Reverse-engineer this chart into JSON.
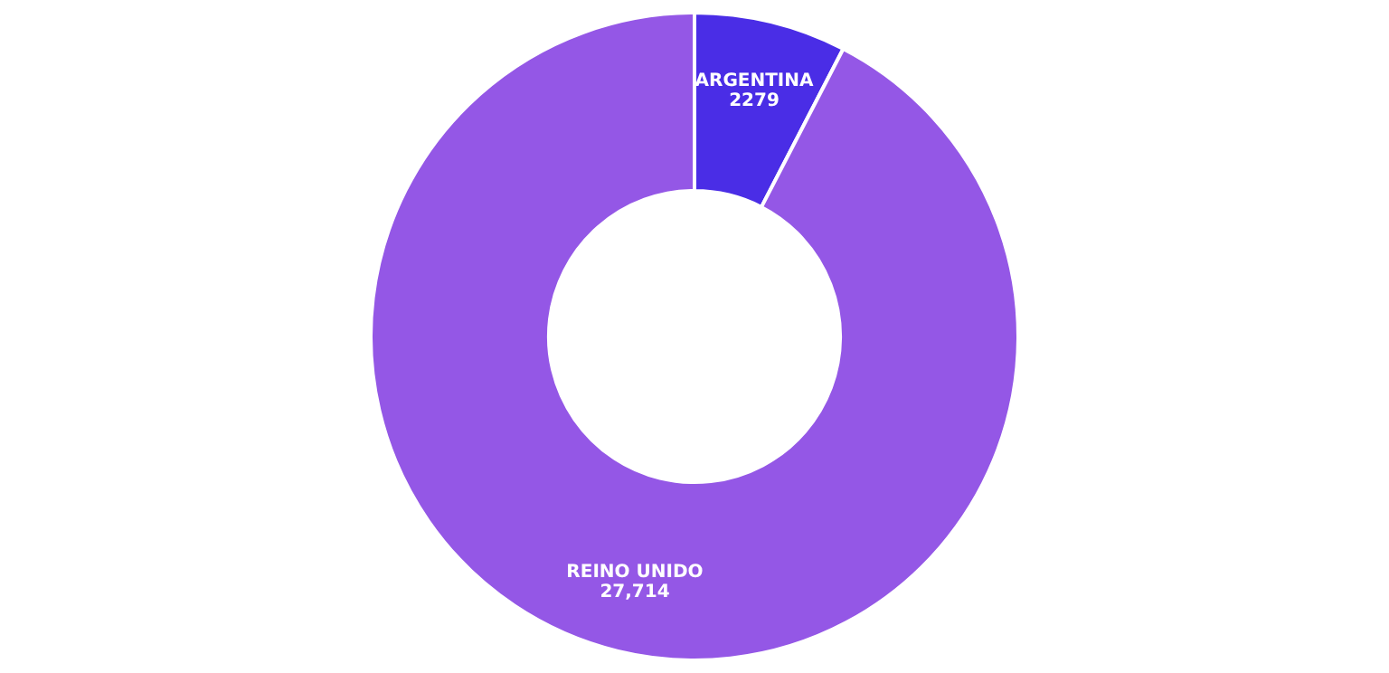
{
  "chart_data": {
    "type": "donut",
    "categories": [
      "ARGENTINA",
      "REINO UNIDO"
    ],
    "values": [
      2279,
      27714
    ],
    "colors": [
      "#4a2de6",
      "#9457e6"
    ],
    "value_labels": [
      "2279",
      "27,714"
    ],
    "legend": false
  }
}
